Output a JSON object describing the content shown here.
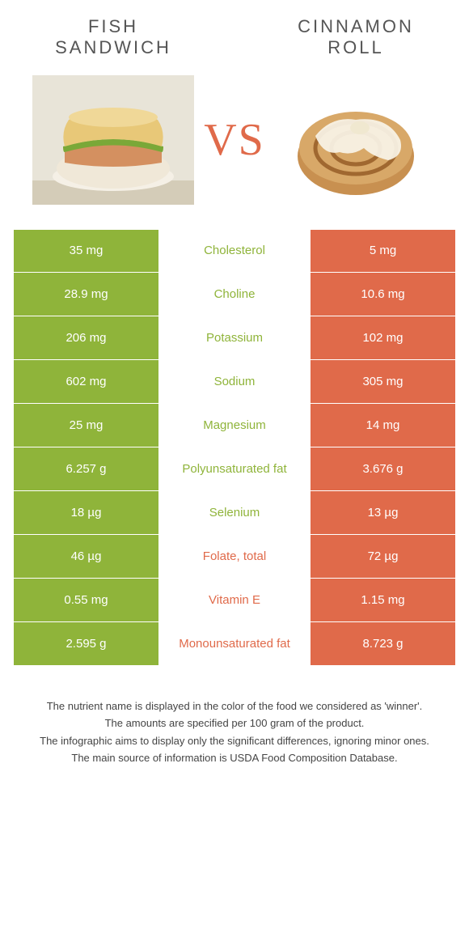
{
  "header": {
    "food1_line1": "Fish",
    "food1_line2": "sandwich",
    "food2_line1": "Cinnamon",
    "food2_line2": "roll",
    "vs": "VS"
  },
  "colors": {
    "green": "#8fb43a",
    "orange": "#e06a4a",
    "text": "#444"
  },
  "table": {
    "rows": [
      {
        "left": "35 mg",
        "label": "Cholesterol",
        "right": "5 mg",
        "winner": "green"
      },
      {
        "left": "28.9 mg",
        "label": "Choline",
        "right": "10.6 mg",
        "winner": "green"
      },
      {
        "left": "206 mg",
        "label": "Potassium",
        "right": "102 mg",
        "winner": "green"
      },
      {
        "left": "602 mg",
        "label": "Sodium",
        "right": "305 mg",
        "winner": "green"
      },
      {
        "left": "25 mg",
        "label": "Magnesium",
        "right": "14 mg",
        "winner": "green"
      },
      {
        "left": "6.257 g",
        "label": "Polyunsaturated fat",
        "right": "3.676 g",
        "winner": "green"
      },
      {
        "left": "18 µg",
        "label": "Selenium",
        "right": "13 µg",
        "winner": "green"
      },
      {
        "left": "46 µg",
        "label": "Folate, total",
        "right": "72 µg",
        "winner": "orange"
      },
      {
        "left": "0.55 mg",
        "label": "Vitamin E",
        "right": "1.15 mg",
        "winner": "orange"
      },
      {
        "left": "2.595 g",
        "label": "Monounsaturated fat",
        "right": "8.723 g",
        "winner": "orange"
      }
    ]
  },
  "footnotes": [
    "The nutrient name is displayed in the color of the food we considered as 'winner'.",
    "The amounts are specified per 100 gram of the product.",
    "The infographic aims to display only the significant differences, ignoring minor ones.",
    "The main source of information is USDA Food Composition Database."
  ]
}
